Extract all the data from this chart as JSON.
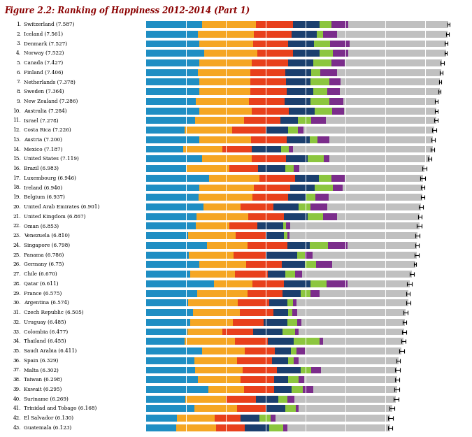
{
  "title": "Figure 2.2: Ranking of Happiness 2012-2014 (Part 1)",
  "countries": [
    "Switzerland (7.587)",
    "Iceland (7.561)",
    "Denmark (7.527)",
    "Norway (7.522)",
    "Canada (7.427)",
    "Finland (7.406)",
    "Netherlands (7.378)",
    "Sweden (7.364)",
    "New Zealand (7.286)",
    "Australia (7.284)",
    "Israel (7.278)",
    "Costa Rica (7.226)",
    "Austria (7.200)",
    "Mexico (7.187)",
    "United States (7.119)",
    "Brazil (6.983)",
    "Luxembourg (6.946)",
    "Ireland (6.940)",
    "Belgium (6.937)",
    "United Arab Emirates (6.901)",
    "United Kingdom (6.867)",
    "Oman (6.853)",
    "Venezuela (6.810)",
    "Singapore (6.798)",
    "Panama (6.786)",
    "Germany (6.75)",
    "Chile (6.670)",
    "Qatar (6.611)",
    "France (6.575)",
    "Argentina (6.574)",
    "Czech Republic (6.505)",
    "Uruguay (6.485)",
    "Colombia (6.477)",
    "Thailand (6.455)",
    "Saudi Arabia (6.411)",
    "Spain (6.329)",
    "Malta (6.302)",
    "Taiwan (6.298)",
    "Kuwait (6.295)",
    "Suriname (6.269)",
    "Trinidad and Tobago (6.168)",
    "El Salvador (6.130)",
    "Guatemala (6.123)"
  ],
  "ranks": [
    1,
    2,
    3,
    4,
    5,
    6,
    7,
    8,
    9,
    10,
    11,
    12,
    13,
    14,
    15,
    16,
    17,
    18,
    19,
    20,
    21,
    22,
    23,
    24,
    25,
    26,
    27,
    28,
    29,
    30,
    31,
    32,
    33,
    34,
    35,
    36,
    37,
    38,
    39,
    40,
    41,
    42,
    43
  ],
  "scores": [
    7.587,
    7.561,
    7.527,
    7.522,
    7.427,
    7.406,
    7.378,
    7.364,
    7.286,
    7.284,
    7.278,
    7.226,
    7.2,
    7.187,
    7.119,
    6.983,
    6.946,
    6.94,
    6.937,
    6.901,
    6.867,
    6.853,
    6.81,
    6.798,
    6.786,
    6.75,
    6.67,
    6.611,
    6.575,
    6.574,
    6.505,
    6.485,
    6.477,
    6.455,
    6.411,
    6.329,
    6.302,
    6.298,
    6.295,
    6.269,
    6.168,
    6.13,
    6.123
  ],
  "segments": {
    "GDP": [
      1.39492,
      1.30232,
      1.32548,
      1.459,
      1.32629,
      1.29025,
      1.32944,
      1.33096,
      1.25018,
      1.33358,
      1.22857,
      0.95578,
      1.33723,
      0.91854,
      1.39451,
      1.0012,
      1.56905,
      1.33596,
      1.30782,
      1.42727,
      1.26637,
      1.24145,
      1.04356,
      1.52186,
      1.06353,
      1.32792,
      1.10715,
      1.69042,
      1.27778,
      1.05351,
      1.17898,
      1.0961,
      1.03032,
      0.9669,
      1.39541,
      1.20813,
      1.23011,
      1.29098,
      1.55195,
      0.98074,
      1.21197,
      0.76454,
      0.74645
    ],
    "Social": [
      1.34951,
      1.40223,
      1.36058,
      1.33095,
      1.32261,
      1.31826,
      1.28017,
      1.28548,
      1.31967,
      1.30923,
      1.22393,
      1.19131,
      1.29671,
      0.99438,
      1.24711,
      1.07869,
      1.27385,
      1.36948,
      1.35907,
      0.94676,
      1.28548,
      0.83521,
      1.20813,
      1.02325,
      1.12486,
      1.18519,
      1.12486,
      0.97393,
      1.26038,
      1.242,
      1.17012,
      1.06897,
      0.87201,
      1.26038,
      1.08233,
      1.07869,
      1.19131,
      1.07163,
      0.90912,
      1.01551,
      1.0656,
      0.95578,
      1.0012
    ],
    "Health": [
      0.94143,
      0.94784,
      0.87464,
      0.88521,
      0.90563,
      0.88911,
      0.89964,
      0.91087,
      0.90739,
      0.93156,
      0.91825,
      0.86293,
      0.89667,
      0.72561,
      0.8687,
      0.72555,
      0.89585,
      0.90739,
      0.89485,
      0.80925,
      0.90739,
      0.71318,
      0.7606,
      0.99748,
      0.82098,
      0.89485,
      0.82098,
      0.79834,
      0.88521,
      0.79834,
      0.84838,
      0.78375,
      0.77897,
      0.81699,
      0.747,
      0.87464,
      0.85998,
      0.84838,
      0.747,
      0.7636,
      0.71318,
      0.64499,
      0.72561
    ],
    "Freedom": [
      0.66557,
      0.62877,
      0.64938,
      0.66973,
      0.63297,
      0.64169,
      0.60435,
      0.65654,
      0.63938,
      0.65124,
      0.44012,
      0.55291,
      0.57009,
      0.75184,
      0.54252,
      0.69077,
      0.60006,
      0.6158,
      0.45937,
      0.64877,
      0.59609,
      0.64172,
      0.44966,
      0.5604,
      0.78721,
      0.57393,
      0.44366,
      0.65124,
      0.45487,
      0.44966,
      0.354,
      0.59614,
      0.73213,
      0.64938,
      0.40127,
      0.40127,
      0.59614,
      0.3444,
      0.43573,
      0.54556,
      0.49143,
      0.48148,
      0.6122
    ],
    "Generosity": [
      0.29678,
      0.14975,
      0.40794,
      0.3437,
      0.45901,
      0.23351,
      0.4761,
      0.36262,
      0.47072,
      0.43562,
      0.3318,
      0.24749,
      0.18993,
      0.17955,
      0.40105,
      0.1967,
      0.3161,
      0.4543,
      0.2225,
      0.29756,
      0.38008,
      0.07066,
      0.0794,
      0.4654,
      0.19087,
      0.28443,
      0.24749,
      0.41926,
      0.23538,
      0.13472,
      0.11832,
      0.23684,
      0.3215,
      0.64938,
      0.1377,
      0.13472,
      0.25782,
      0.26045,
      0.29356,
      0.22879,
      0.2743,
      0.2703,
      0.3437
    ],
    "Trust": [
      0.41978,
      0.35637,
      0.48357,
      0.38434,
      0.32957,
      0.41372,
      0.28733,
      0.30747,
      0.36066,
      0.30163,
      0.37405,
      0.14069,
      0.29678,
      0.12156,
      0.14574,
      0.14768,
      0.33558,
      0.24071,
      0.34236,
      0.40614,
      0.35637,
      0.10866,
      0.0579,
      0.48038,
      0.18244,
      0.40614,
      0.1661,
      0.52208,
      0.24356,
      0.08714,
      0.12163,
      0.10541,
      0.09463,
      0.09609,
      0.22104,
      0.12163,
      0.25218,
      0.15093,
      0.2464,
      0.17941,
      0.06701,
      0.12156,
      0.10866
    ]
  },
  "colors": {
    "GDP": "#1F8EC3",
    "Social": "#F5A623",
    "Health": "#E8401C",
    "Freedom": "#1B3F6E",
    "Generosity": "#8CC63F",
    "Trust": "#7B2D8B",
    "Residual": "#C0C0C0"
  },
  "error_bars": [
    0.03,
    0.04,
    0.03,
    0.03,
    0.04,
    0.04,
    0.03,
    0.03,
    0.04,
    0.04,
    0.04,
    0.05,
    0.04,
    0.05,
    0.04,
    0.05,
    0.06,
    0.05,
    0.04,
    0.05,
    0.04,
    0.06,
    0.05,
    0.04,
    0.05,
    0.03,
    0.05,
    0.06,
    0.04,
    0.05,
    0.05,
    0.05,
    0.05,
    0.05,
    0.06,
    0.04,
    0.06,
    0.05,
    0.06,
    0.06,
    0.06,
    0.06,
    0.06
  ],
  "xlim": [
    0,
    8.0
  ],
  "figsize": [
    6.75,
    6.25
  ],
  "dpi": 100,
  "title_color": "#8B0000",
  "title_fontsize": 8.5,
  "label_fontsize": 5.2,
  "background_color": "#FFFFFF"
}
